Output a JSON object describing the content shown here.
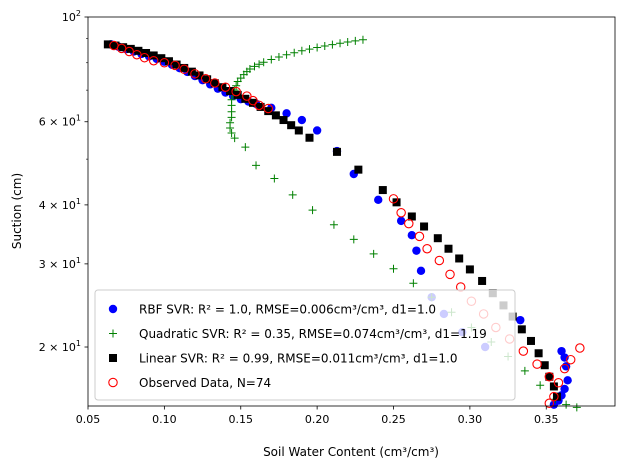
{
  "chart_data": {
    "type": "scatter",
    "xlabel": "Soil Water Content (cm³/cm³)",
    "ylabel": "Suction (cm)",
    "xscale": "linear",
    "yscale": "log",
    "xlim": [
      0.05,
      0.395
    ],
    "ylim": [
      15,
      100
    ],
    "grid": false,
    "legend_position": "lower-left",
    "x_ticks": [
      {
        "v": 0.05,
        "label": "0.05"
      },
      {
        "v": 0.1,
        "label": "0.10"
      },
      {
        "v": 0.15,
        "label": "0.15"
      },
      {
        "v": 0.2,
        "label": "0.20"
      },
      {
        "v": 0.25,
        "label": "0.25"
      },
      {
        "v": 0.3,
        "label": "0.30"
      },
      {
        "v": 0.35,
        "label": "0.35"
      }
    ],
    "y_ticks": [
      {
        "v": 20,
        "base": "2 × 10",
        "exp": "1"
      },
      {
        "v": 30,
        "base": "3 × 10",
        "exp": "1"
      },
      {
        "v": 40,
        "base": "4 × 10",
        "exp": "1"
      },
      {
        "v": 60,
        "base": "6 × 10",
        "exp": "1"
      },
      {
        "v": 100,
        "base": "10",
        "exp": "2"
      }
    ],
    "y_minor_ticks": [
      50,
      70,
      80,
      90
    ],
    "series": [
      {
        "name": "RBF SVR: R² = 1.0, RMSE=0.006cm³/cm³, d1=1.0",
        "marker": "filled-circle",
        "color": "#0000ff",
        "points": [
          [
            0.065,
            87.5
          ],
          [
            0.07,
            86.5
          ],
          [
            0.075,
            85.5
          ],
          [
            0.08,
            84.5
          ],
          [
            0.085,
            83.5
          ],
          [
            0.09,
            82.5
          ],
          [
            0.095,
            81.5
          ],
          [
            0.1,
            80.4
          ],
          [
            0.105,
            79.2
          ],
          [
            0.11,
            77.9
          ],
          [
            0.115,
            76.5
          ],
          [
            0.12,
            75.0
          ],
          [
            0.125,
            73.5
          ],
          [
            0.13,
            72.0
          ],
          [
            0.135,
            70.5
          ],
          [
            0.14,
            69.2
          ],
          [
            0.145,
            68.0
          ],
          [
            0.15,
            67.0
          ],
          [
            0.155,
            66.2
          ],
          [
            0.16,
            65.5
          ],
          [
            0.17,
            64.2
          ],
          [
            0.18,
            62.5
          ],
          [
            0.19,
            60.5
          ],
          [
            0.2,
            57.5
          ],
          [
            0.213,
            52.0
          ],
          [
            0.224,
            46.5
          ],
          [
            0.24,
            41.0
          ],
          [
            0.255,
            37.0
          ],
          [
            0.262,
            34.5
          ],
          [
            0.265,
            32.0
          ],
          [
            0.268,
            29.0
          ],
          [
            0.275,
            25.5
          ],
          [
            0.283,
            23.5
          ],
          [
            0.295,
            21.5
          ],
          [
            0.31,
            20.0
          ],
          [
            0.333,
            22.8
          ],
          [
            0.36,
            19.6
          ],
          [
            0.362,
            19.0
          ],
          [
            0.363,
            18.2
          ],
          [
            0.364,
            17.0
          ],
          [
            0.362,
            16.3
          ],
          [
            0.36,
            15.8
          ],
          [
            0.358,
            15.4
          ],
          [
            0.355,
            15.1
          ]
        ]
      },
      {
        "name": "Quadratic SVR: R² = 0.35, RMSE=0.074cm³/cm³, d1=1.19",
        "marker": "plus",
        "color": "#008000",
        "points": [
          [
            0.23,
            89.5
          ],
          [
            0.225,
            89.0
          ],
          [
            0.22,
            88.5
          ],
          [
            0.215,
            88.0
          ],
          [
            0.21,
            87.4
          ],
          [
            0.205,
            86.8
          ],
          [
            0.2,
            86.2
          ],
          [
            0.195,
            85.5
          ],
          [
            0.19,
            84.8
          ],
          [
            0.185,
            84.0
          ],
          [
            0.18,
            83.2
          ],
          [
            0.175,
            82.3
          ],
          [
            0.17,
            81.3
          ],
          [
            0.165,
            80.2
          ],
          [
            0.162,
            79.4
          ],
          [
            0.159,
            78.6
          ],
          [
            0.156,
            77.6
          ],
          [
            0.154,
            76.6
          ],
          [
            0.152,
            75.5
          ],
          [
            0.15,
            74.2
          ],
          [
            0.148,
            73.0
          ],
          [
            0.147,
            71.5
          ],
          [
            0.146,
            70.0
          ],
          [
            0.145,
            68.5
          ],
          [
            0.144,
            66.8
          ],
          [
            0.144,
            65.0
          ],
          [
            0.144,
            63.0
          ],
          [
            0.144,
            61.3
          ],
          [
            0.143,
            59.7
          ],
          [
            0.143,
            58.2
          ],
          [
            0.144,
            56.8
          ],
          [
            0.146,
            55.4
          ],
          [
            0.153,
            53.0
          ],
          [
            0.16,
            48.5
          ],
          [
            0.172,
            45.5
          ],
          [
            0.184,
            42.0
          ],
          [
            0.197,
            39.0
          ],
          [
            0.211,
            36.3
          ],
          [
            0.224,
            33.8
          ],
          [
            0.237,
            31.5
          ],
          [
            0.25,
            29.3
          ],
          [
            0.263,
            27.3
          ],
          [
            0.275,
            25.5
          ],
          [
            0.288,
            23.7
          ],
          [
            0.301,
            22.0
          ],
          [
            0.314,
            20.5
          ],
          [
            0.325,
            19.1
          ],
          [
            0.336,
            17.8
          ],
          [
            0.346,
            16.6
          ],
          [
            0.356,
            15.5
          ],
          [
            0.363,
            15.1
          ],
          [
            0.37,
            14.9
          ]
        ]
      },
      {
        "name": "Linear SVR: R² = 0.99, RMSE=0.011cm³/cm³, d1=1.0",
        "marker": "filled-square",
        "color": "#000000",
        "points": [
          [
            0.063,
            87.5
          ],
          [
            0.068,
            87.0
          ],
          [
            0.073,
            86.3
          ],
          [
            0.078,
            85.6
          ],
          [
            0.083,
            84.8
          ],
          [
            0.088,
            83.9
          ],
          [
            0.093,
            82.9
          ],
          [
            0.098,
            81.8
          ],
          [
            0.103,
            80.6
          ],
          [
            0.108,
            79.3
          ],
          [
            0.113,
            78.0
          ],
          [
            0.118,
            76.6
          ],
          [
            0.123,
            75.2
          ],
          [
            0.128,
            73.8
          ],
          [
            0.133,
            72.4
          ],
          [
            0.138,
            71.0
          ],
          [
            0.143,
            69.7
          ],
          [
            0.148,
            68.4
          ],
          [
            0.153,
            67.1
          ],
          [
            0.158,
            65.8
          ],
          [
            0.163,
            64.5
          ],
          [
            0.168,
            63.2
          ],
          [
            0.173,
            61.9
          ],
          [
            0.178,
            60.5
          ],
          [
            0.183,
            59.0
          ],
          [
            0.188,
            57.5
          ],
          [
            0.195,
            55.5
          ],
          [
            0.213,
            51.8
          ],
          [
            0.227,
            47.5
          ],
          [
            0.243,
            43.0
          ],
          [
            0.252,
            40.5
          ],
          [
            0.262,
            37.8
          ],
          [
            0.27,
            36.0
          ],
          [
            0.279,
            34.0
          ],
          [
            0.286,
            32.3
          ],
          [
            0.293,
            30.8
          ],
          [
            0.3,
            29.2
          ],
          [
            0.308,
            27.6
          ],
          [
            0.315,
            26.0
          ],
          [
            0.322,
            24.5
          ],
          [
            0.328,
            23.2
          ],
          [
            0.334,
            21.8
          ],
          [
            0.34,
            20.6
          ],
          [
            0.345,
            19.4
          ],
          [
            0.349,
            18.3
          ],
          [
            0.352,
            17.3
          ],
          [
            0.355,
            16.5
          ],
          [
            0.357,
            15.7
          ]
        ]
      },
      {
        "name": "Observed Data, N=74",
        "marker": "open-circle",
        "color": "#ff0000",
        "points": [
          [
            0.067,
            87.0
          ],
          [
            0.072,
            85.8
          ],
          [
            0.077,
            84.5
          ],
          [
            0.082,
            83.2
          ],
          [
            0.087,
            82.0
          ],
          [
            0.093,
            80.8
          ],
          [
            0.1,
            80.0
          ],
          [
            0.107,
            79.0
          ],
          [
            0.113,
            77.5
          ],
          [
            0.12,
            75.8
          ],
          [
            0.127,
            74.0
          ],
          [
            0.133,
            72.5
          ],
          [
            0.14,
            71.0
          ],
          [
            0.147,
            69.5
          ],
          [
            0.154,
            68.0
          ],
          [
            0.158,
            66.5
          ],
          [
            0.162,
            65.0
          ],
          [
            0.168,
            64.0
          ],
          [
            0.25,
            41.2
          ],
          [
            0.255,
            38.5
          ],
          [
            0.26,
            36.5
          ],
          [
            0.267,
            34.3
          ],
          [
            0.272,
            32.3
          ],
          [
            0.28,
            30.5
          ],
          [
            0.287,
            28.5
          ],
          [
            0.294,
            26.8
          ],
          [
            0.301,
            25.0
          ],
          [
            0.309,
            23.5
          ],
          [
            0.317,
            22.0
          ],
          [
            0.326,
            20.8
          ],
          [
            0.335,
            19.6
          ],
          [
            0.344,
            18.4
          ],
          [
            0.352,
            17.3
          ],
          [
            0.358,
            16.8
          ],
          [
            0.362,
            18.0
          ],
          [
            0.366,
            18.8
          ],
          [
            0.372,
            19.9
          ],
          [
            0.355,
            15.7
          ],
          [
            0.352,
            15.2
          ]
        ]
      }
    ]
  }
}
